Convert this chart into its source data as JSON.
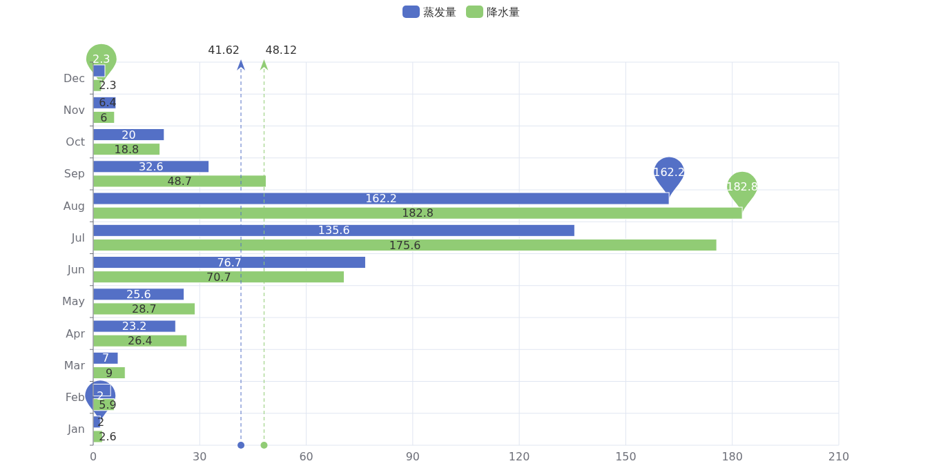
{
  "chart_data": {
    "type": "bar",
    "orientation": "horizontal",
    "categories": [
      "Dec",
      "Nov",
      "Oct",
      "Sep",
      "Aug",
      "Jul",
      "Jun",
      "May",
      "Apr",
      "Mar",
      "Feb",
      "Jan"
    ],
    "series": [
      {
        "name": "蒸发量",
        "color": "#5470c6",
        "values": [
          3.3,
          6.4,
          20,
          32.6,
          162.2,
          135.6,
          76.7,
          25.6,
          23.2,
          7,
          4.9,
          2
        ],
        "value_labels": [
          null,
          "6.4",
          "20",
          "32.6",
          "162.2",
          "135.6",
          "76.7",
          "25.6",
          "23.2",
          "7",
          null,
          "2"
        ]
      },
      {
        "name": "降水量",
        "color": "#91cc75",
        "values": [
          2.3,
          6,
          18.8,
          48.7,
          182.8,
          175.6,
          70.7,
          28.7,
          26.4,
          9,
          5.9,
          2.6
        ],
        "value_labels": [
          "2.3",
          "6",
          "18.8",
          "48.7",
          "182.8",
          "175.6",
          "70.7",
          "28.7",
          "26.4",
          "9",
          "5.9",
          "2.6"
        ]
      }
    ],
    "xlim": [
      0,
      210
    ],
    "xticks": [
      0,
      30,
      60,
      90,
      120,
      150,
      180,
      210
    ],
    "grid": true,
    "legend": "top",
    "ref_lines": [
      {
        "axis": "x",
        "value": 41.62,
        "label": "41.62",
        "color": "#5470c6",
        "line_style": "dashed"
      },
      {
        "axis": "x",
        "value": 48.12,
        "label": "48.12",
        "color": "#91cc75",
        "line_style": "dashed"
      }
    ],
    "annotations": [
      {
        "text": "162.2",
        "x": 162.2,
        "y": "Aug"
      },
      {
        "text": "2",
        "x": 2,
        "y": "Jan"
      },
      {
        "text": "182.8",
        "x": 182.8,
        "y": "Aug"
      },
      {
        "text": "2.3",
        "x": 2.3,
        "y": "Dec"
      }
    ]
  }
}
